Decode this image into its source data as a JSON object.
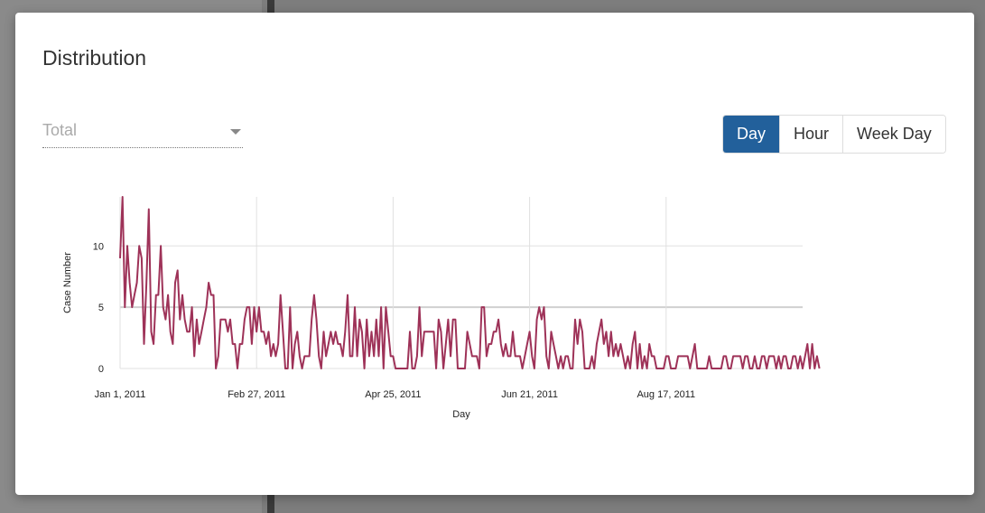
{
  "modal": {
    "title": "Distribution",
    "metric_select": {
      "value": "Total"
    },
    "granularity_buttons": [
      {
        "label": "Day",
        "active": true
      },
      {
        "label": "Hour",
        "active": false
      },
      {
        "label": "Week Day",
        "active": false
      }
    ]
  },
  "colors": {
    "accent": "#22609b",
    "line": "#9e3258"
  },
  "chart_data": {
    "type": "line",
    "xlabel": "Day",
    "ylabel": "Case Number",
    "x_start": "Jan 1, 2011",
    "x_tick_labels": [
      "Jan 1, 2011",
      "Feb 27, 2011",
      "Apr 25, 2011",
      "Jun 21, 2011",
      "Aug 17, 2011"
    ],
    "x_tick_days": [
      0,
      57,
      114,
      171,
      228
    ],
    "y_ticks": [
      0,
      5,
      10
    ],
    "ylim": [
      0,
      14
    ],
    "xlim_days": [
      0,
      285
    ],
    "grid": true,
    "series": [
      {
        "name": "Total",
        "values": [
          9,
          14,
          5,
          10,
          7,
          5,
          6,
          7,
          10,
          9,
          2,
          7,
          13,
          3,
          2,
          6,
          6,
          10,
          5,
          4,
          6,
          3,
          2,
          7,
          8,
          4,
          6,
          4,
          3,
          3,
          5,
          1,
          4,
          2,
          3,
          4,
          5,
          7,
          6,
          6,
          0,
          1,
          4,
          4,
          4,
          3,
          4,
          2,
          2,
          0,
          2,
          2,
          4,
          5,
          5,
          2,
          5,
          3,
          5,
          3,
          3,
          2,
          3,
          1,
          2,
          1,
          2,
          6,
          3,
          0,
          0,
          5,
          0,
          2,
          3,
          1,
          0,
          1,
          1,
          1,
          4,
          6,
          4,
          1,
          0,
          3,
          1,
          2,
          3,
          2,
          3,
          2,
          2,
          1,
          3,
          6,
          1,
          1,
          5,
          1,
          4,
          3,
          0,
          4,
          1,
          3,
          1,
          4,
          1,
          5,
          0,
          5,
          3,
          1,
          1,
          0,
          0,
          0,
          0,
          0,
          0,
          3,
          0,
          0,
          1,
          5,
          1,
          3,
          3,
          3,
          3,
          3,
          0,
          4,
          3,
          0,
          2,
          4,
          1,
          4,
          4,
          0,
          0,
          0,
          0,
          3,
          2,
          1,
          1,
          1,
          0,
          5,
          5,
          1,
          2,
          2,
          3,
          3,
          4,
          2,
          1,
          2,
          1,
          1,
          3,
          1,
          1,
          1,
          0,
          1,
          2,
          3,
          1,
          0,
          4,
          5,
          4,
          5,
          1,
          0,
          3,
          2,
          1,
          0,
          1,
          0,
          1,
          1,
          0,
          0,
          4,
          2,
          4,
          3,
          0,
          0,
          0,
          1,
          0,
          2,
          3,
          4,
          2,
          3,
          1,
          3,
          1,
          2,
          1,
          2,
          1,
          0,
          1,
          0,
          2,
          3,
          0,
          2,
          0,
          1,
          0,
          2,
          1,
          1,
          0,
          0,
          0,
          0,
          1,
          1,
          0,
          0,
          0,
          1,
          1,
          1,
          1,
          1,
          0,
          1,
          2,
          0,
          0,
          0,
          0,
          0,
          1,
          0,
          0,
          0,
          0,
          0,
          1,
          1,
          0,
          0,
          1,
          1,
          1,
          1,
          0,
          1,
          1,
          0,
          0,
          1,
          0,
          0,
          1,
          1,
          0,
          1,
          1,
          1,
          0,
          1,
          0,
          1,
          1,
          0,
          0,
          1,
          1,
          0,
          1,
          0,
          1,
          2,
          0,
          2,
          0,
          1,
          0
        ]
      }
    ]
  }
}
